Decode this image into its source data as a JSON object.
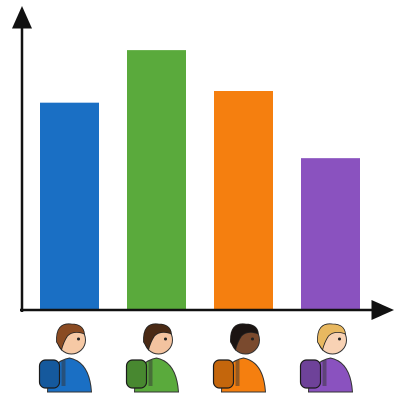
{
  "chart_data": {
    "type": "bar",
    "categories": [
      null,
      null,
      null,
      null
    ],
    "values": [
      71,
      89,
      75,
      52
    ],
    "colors": [
      "#1a6fc4",
      "#5aaa3c",
      "#f57f0f",
      "#8a52bf"
    ],
    "ylim": [
      0,
      100
    ]
  }
}
